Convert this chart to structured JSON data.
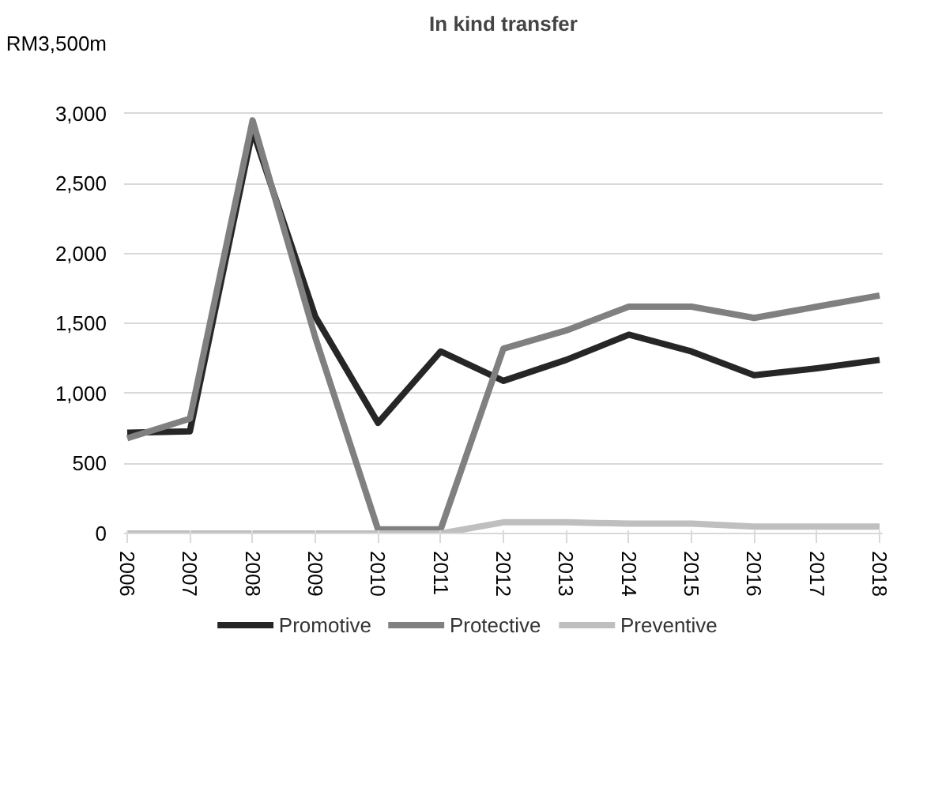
{
  "chart_data": {
    "type": "line",
    "title": "In kind transfer",
    "categories": [
      "2006",
      "2007",
      "2008",
      "2009",
      "2010",
      "2011",
      "2012",
      "2013",
      "2014",
      "2015",
      "2016",
      "2017",
      "2018"
    ],
    "series": [
      {
        "name": "Promotive",
        "color": "#262626",
        "values": [
          720,
          730,
          2880,
          1550,
          790,
          1300,
          1090,
          1240,
          1420,
          1300,
          1130,
          1180,
          1240
        ]
      },
      {
        "name": "Protective",
        "color": "#808080",
        "values": [
          680,
          820,
          2950,
          1400,
          30,
          30,
          1320,
          1450,
          1620,
          1620,
          1540,
          1620,
          1700
        ]
      },
      {
        "name": "Preventive",
        "color": "#bfbfbf",
        "values": [
          0,
          0,
          0,
          0,
          0,
          0,
          80,
          80,
          70,
          70,
          50,
          50,
          50
        ]
      }
    ],
    "ylim": [
      0,
      3500
    ],
    "yticks": [
      0,
      500,
      {
        "value": 1000,
        "label": "1,000"
      },
      {
        "value": 1500,
        "label": "1,500"
      },
      {
        "value": 2000,
        "label": "2,000"
      },
      {
        "value": 2500,
        "label": "2,500"
      },
      {
        "value": 3000,
        "label": "3,000"
      },
      {
        "value": 3500,
        "label": "RM3,500m"
      }
    ],
    "grid": "y",
    "legend": "bottom",
    "marker": "none",
    "line_style": "solid"
  }
}
